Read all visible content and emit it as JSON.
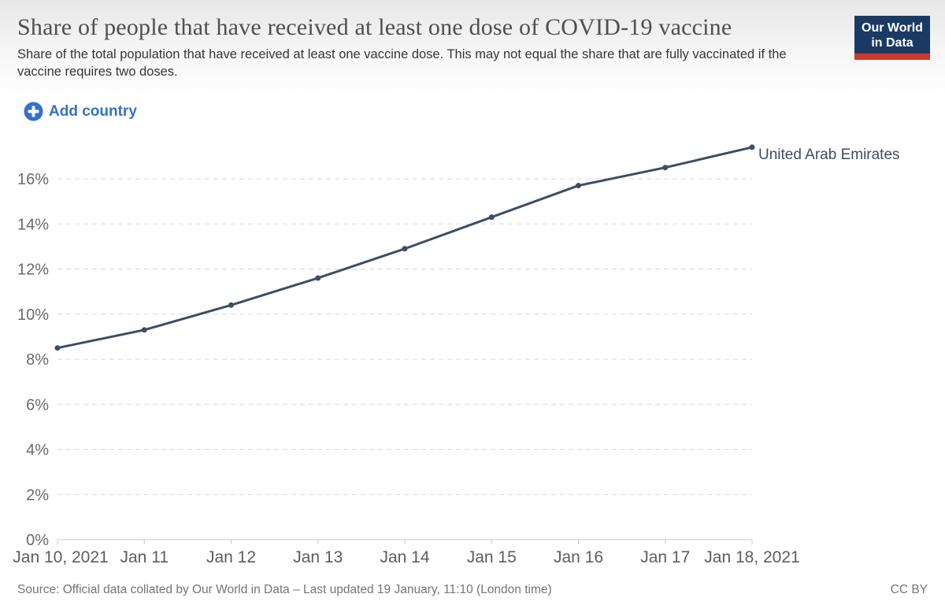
{
  "header": {
    "title": "Share of people that have received at least one dose of COVID-19 vaccine",
    "subtitle": "Share of the total population that have received at least one vaccine dose. This may not equal the share that are fully vaccinated if the vaccine requires two doses.",
    "logo": {
      "line1": "Our World",
      "line2": "in Data",
      "bg_color": "#1a3a63",
      "stripe_color": "#cc392e"
    }
  },
  "controls": {
    "add_country_label": "Add country",
    "accent_color": "#3571c8"
  },
  "chart_data": {
    "type": "line",
    "title": "Share of people that have received at least one dose of COVID-19 vaccine",
    "x_labels": [
      "Jan 10, 2021",
      "Jan 11",
      "Jan 12",
      "Jan 13",
      "Jan 14",
      "Jan 15",
      "Jan 16",
      "Jan 17",
      "Jan 18, 2021"
    ],
    "series": [
      {
        "name": "United Arab Emirates",
        "color": "#3c4e66",
        "values": [
          8.5,
          9.3,
          10.4,
          11.6,
          12.9,
          14.3,
          15.7,
          16.5,
          17.4
        ]
      }
    ],
    "y_ticks": [
      0,
      2,
      4,
      6,
      8,
      10,
      12,
      14,
      16
    ],
    "y_tick_labels": [
      "0%",
      "2%",
      "4%",
      "6%",
      "8%",
      "10%",
      "12%",
      "14%",
      "16%"
    ],
    "ylim": [
      0,
      18
    ],
    "grid": true,
    "grid_style": "dashed",
    "legend_position": "line-end-label"
  },
  "footer": {
    "source": "Source: Official data collated by Our World in Data – Last updated 19 January, 11:10 (London time)",
    "license": "CC BY"
  }
}
